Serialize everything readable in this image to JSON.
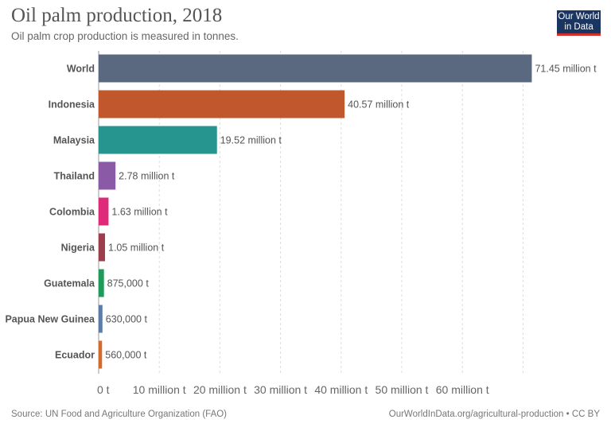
{
  "header": {
    "title": "Oil palm production, 2018",
    "subtitle": "Oil palm crop production is measured in tonnes.",
    "logo": "Our World in Data"
  },
  "footer": {
    "source": "Source: UN Food and Agriculture Organization (FAO)",
    "credit": "OurWorldInData.org/agricultural-production • CC BY"
  },
  "chart_data": {
    "type": "bar",
    "orientation": "horizontal",
    "title": "Oil palm production, 2018",
    "unit": "tonnes",
    "categories": [
      "World",
      "Indonesia",
      "Malaysia",
      "Thailand",
      "Colombia",
      "Nigeria",
      "Guatemala",
      "Papua New Guinea",
      "Ecuador"
    ],
    "values": [
      71450000,
      40570000,
      19520000,
      2780000,
      1630000,
      1050000,
      875000,
      630000,
      560000
    ],
    "labels": [
      "71.45 million t",
      "40.57 million t",
      "19.52 million t",
      "2.78 million t",
      "1.63 million t",
      "1.05 million t",
      "875,000 t",
      "630,000 t",
      "560,000 t"
    ],
    "colors": [
      "#5a6880",
      "#c0572d",
      "#27958f",
      "#8b5aa6",
      "#df2a79",
      "#9c3e4b",
      "#1f9a5a",
      "#5b7ca6",
      "#d3692b"
    ],
    "xticks": [
      0,
      10000000,
      20000000,
      30000000,
      40000000,
      50000000,
      60000000
    ],
    "xtick_labels": [
      "0 t",
      "10 million t",
      "20 million t",
      "30 million t",
      "40 million t",
      "50 million t",
      "60 million t"
    ],
    "xlim": [
      0,
      70000000
    ],
    "grid": true
  }
}
